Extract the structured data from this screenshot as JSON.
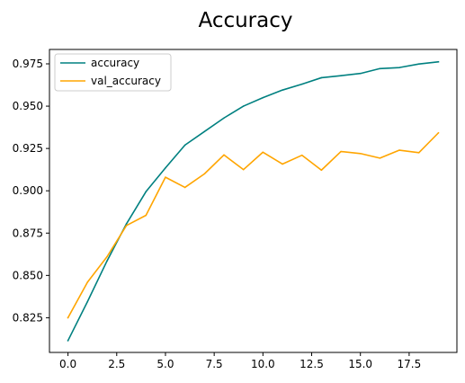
{
  "chart_data": {
    "type": "line",
    "title": "Accuracy",
    "xlabel": "",
    "ylabel": "",
    "xlim": [
      -0.95,
      19.95
    ],
    "ylim": [
      0.8045,
      0.9835
    ],
    "xticks": [
      0,
      2.5,
      5,
      7.5,
      10,
      12.5,
      15,
      17.5
    ],
    "xtick_labels": [
      "0.0",
      "2.5",
      "5.0",
      "7.5",
      "10.0",
      "12.5",
      "15.0",
      "17.5"
    ],
    "yticks": [
      0.825,
      0.85,
      0.875,
      0.9,
      0.925,
      0.95,
      0.975
    ],
    "ytick_labels": [
      "0.825",
      "0.850",
      "0.875",
      "0.900",
      "0.925",
      "0.950",
      "0.975"
    ],
    "grid": false,
    "legend_position": "top-left",
    "x": [
      0,
      1,
      2,
      3,
      4,
      5,
      6,
      7,
      8,
      9,
      10,
      11,
      12,
      13,
      14,
      15,
      16,
      17,
      18,
      19
    ],
    "series": [
      {
        "name": "accuracy",
        "color": "#008080",
        "values": [
          0.8115,
          0.8345,
          0.8585,
          0.8805,
          0.8995,
          0.9135,
          0.927,
          0.935,
          0.943,
          0.95,
          0.955,
          0.9595,
          0.963,
          0.9668,
          0.968,
          0.9693,
          0.9722,
          0.9728,
          0.9749,
          0.9762
        ]
      },
      {
        "name": "val_accuracy",
        "color": "#ffa500",
        "values": [
          0.825,
          0.846,
          0.861,
          0.8795,
          0.8855,
          0.908,
          0.902,
          0.91,
          0.9212,
          0.9125,
          0.9228,
          0.9158,
          0.921,
          0.9122,
          0.9232,
          0.922,
          0.9193,
          0.924,
          0.9225,
          0.9342
        ]
      }
    ]
  }
}
